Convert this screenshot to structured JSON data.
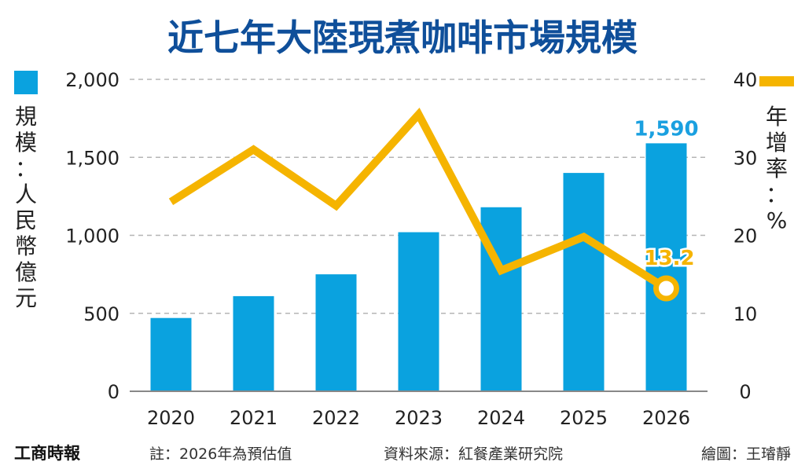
{
  "title": "近七年大陸現煮咖啡市場規模",
  "colors": {
    "bar": "#0aa2df",
    "line": "#f5b400",
    "title": "#0f4f9a",
    "grid": "#b5b5b5"
  },
  "chart_data": {
    "type": "bar+line",
    "categories": [
      "2020",
      "2021",
      "2022",
      "2023",
      "2024",
      "2025",
      "2026"
    ],
    "left_axis": {
      "label": "規模：人民幣億元",
      "ticks": [
        "0",
        "500",
        "1,000",
        "1,500",
        "2,000"
      ],
      "range": [
        0,
        2000
      ]
    },
    "right_axis": {
      "label": "年增率：%",
      "ticks": [
        "0",
        "10",
        "20",
        "30",
        "40"
      ],
      "range": [
        0,
        40
      ]
    },
    "series": [
      {
        "type": "bar",
        "values": [
          470,
          610,
          750,
          1020,
          1180,
          1400,
          1590
        ],
        "labeled_value": "1,590"
      },
      {
        "type": "line",
        "values": [
          24.3,
          31.0,
          23.8,
          35.5,
          15.5,
          19.8,
          13.2
        ],
        "labeled_value": "13.2"
      }
    ],
    "grid": "dashed horizontal"
  },
  "footer": {
    "logo": "工商時報",
    "note": "註：2026年為預估值",
    "source": "資料來源：紅餐產業研究院",
    "credit": "繪圖：王璿靜"
  }
}
